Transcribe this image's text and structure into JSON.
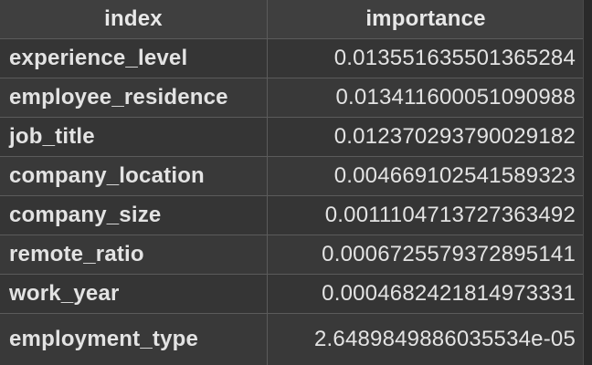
{
  "table": {
    "columns": [
      "index",
      "importance"
    ],
    "rows": [
      {
        "index": "experience_level",
        "importance": "0.013551635501365284"
      },
      {
        "index": "employee_residence",
        "importance": "0.013411600051090988"
      },
      {
        "index": "job_title",
        "importance": "0.012370293790029182"
      },
      {
        "index": "company_location",
        "importance": "0.004669102541589323"
      },
      {
        "index": "company_size",
        "importance": "0.0011104713727363492"
      },
      {
        "index": "remote_ratio",
        "importance": "0.0006725579372895141"
      },
      {
        "index": "work_year",
        "importance": "0.0004682421814973331"
      },
      {
        "index": "employment_type",
        "importance": "2.6489849886035534e-05"
      }
    ]
  },
  "colors": {
    "background": "#3a3a3a",
    "grid": "#5b5b5b",
    "text": "#e3e3e3"
  }
}
